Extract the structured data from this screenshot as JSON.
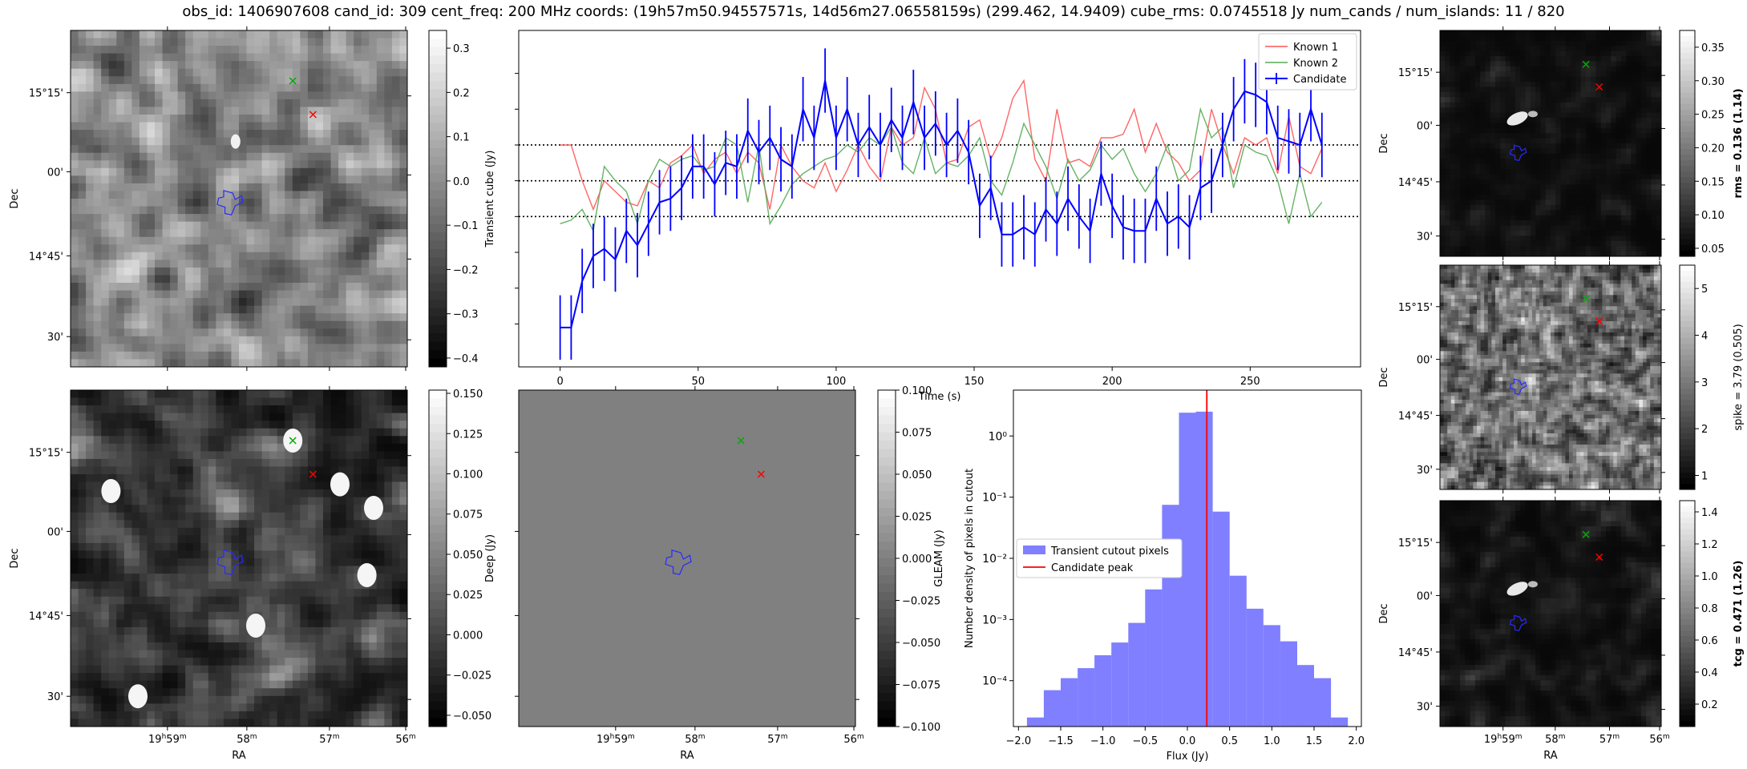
{
  "header": {
    "title": "obs_id: 1406907608 cand_id: 309 cent_freq: 200 MHz coords: (19h57m50.94557571s, 14d56m27.06558159s) (299.462, 14.9409) cube_rms: 0.0745518 Jy num_cands / num_islands: 11 / 820"
  },
  "colors": {
    "candidate": "#0000ff",
    "known1": "#ff5555",
    "known2": "#55aa55",
    "histogram": "#7f7fff",
    "peak_line": "#ff0000",
    "marker_known1": "#00aa00",
    "marker_known2": "#ff0000",
    "contour": "#2a2aff"
  },
  "sky_axes": {
    "ra_ticks": [
      "19h59m",
      "58m",
      "57m",
      "56m"
    ],
    "dec_ticks": [
      "15°15'",
      "00'",
      "14°45'",
      "30'"
    ],
    "xlabel": "RA",
    "ylabel": "Dec"
  },
  "panels": {
    "transient_cube": {
      "colorbar_label": "Transient cube (Jy)",
      "colorbar_ticks": [
        "0.3",
        "0.2",
        "0.1",
        "0.0",
        "−0.1",
        "−0.2",
        "−0.3",
        "−0.4"
      ],
      "colorbar_range": [
        -0.42,
        0.34
      ],
      "texture": "noise"
    },
    "deep": {
      "colorbar_label": "Deep (Jy)",
      "colorbar_ticks": [
        "0.150",
        "0.125",
        "0.100",
        "0.075",
        "0.050",
        "0.025",
        "0.000",
        "−0.025",
        "−0.050"
      ],
      "colorbar_range": [
        -0.057,
        0.152
      ],
      "texture": "sources"
    },
    "gleam": {
      "colorbar_label": "GLEAM (Jy)",
      "colorbar_ticks": [
        "0.100",
        "0.075",
        "0.050",
        "0.025",
        "0.000",
        "−0.025",
        "−0.050",
        "−0.075",
        "−0.100"
      ],
      "colorbar_range": [
        -0.1,
        0.1
      ],
      "texture": "flat"
    },
    "rms": {
      "colorbar_label_plain": "rms = ",
      "colorbar_label_value": "0.136 (1.14)",
      "colorbar_ticks": [
        "0.35",
        "0.30",
        "0.25",
        "0.20",
        "0.15",
        "0.10",
        "0.05"
      ],
      "colorbar_range": [
        0.038,
        0.375
      ],
      "texture": "dark_source"
    },
    "spike": {
      "colorbar_label": "spike = 3.79 (0.505)",
      "colorbar_ticks": [
        "5",
        "4",
        "3",
        "2",
        "1"
      ],
      "colorbar_range": [
        0.7,
        5.5
      ],
      "texture": "speckle"
    },
    "tcg": {
      "colorbar_label_plain": "tcg = ",
      "colorbar_label_value": "0.471 (1.26)",
      "colorbar_ticks": [
        "1.4",
        "1.2",
        "1.0",
        "0.8",
        "0.6",
        "0.4",
        "0.2"
      ],
      "colorbar_range": [
        0.06,
        1.47
      ],
      "texture": "dark_source"
    }
  },
  "chart_data": [
    {
      "type": "line",
      "title": "",
      "xlabel": "Time (s)",
      "ylabel": "",
      "xlim": [
        -15,
        290
      ],
      "ylim": [
        -0.52,
        0.42
      ],
      "x_ticks": [
        "0",
        "50",
        "100",
        "150",
        "200",
        "250"
      ],
      "hlines": [
        -0.1,
        0.0,
        0.1
      ],
      "legend": [
        "Known 1",
        "Known 2",
        "Candidate"
      ],
      "legend_position": "top-right",
      "x": [
        0,
        4,
        8,
        12,
        16,
        20,
        24,
        28,
        32,
        36,
        40,
        44,
        48,
        52,
        56,
        60,
        64,
        68,
        72,
        76,
        80,
        84,
        88,
        92,
        96,
        100,
        104,
        108,
        112,
        116,
        120,
        124,
        128,
        132,
        136,
        140,
        144,
        148,
        152,
        156,
        160,
        164,
        168,
        172,
        176,
        180,
        184,
        188,
        192,
        196,
        200,
        204,
        208,
        212,
        216,
        220,
        224,
        228,
        232,
        236,
        240,
        244,
        248,
        252,
        256,
        260,
        264,
        268,
        272,
        276
      ],
      "series": [
        {
          "name": "Known 1",
          "values": [
            0.1,
            0.1,
            0.0,
            -0.08,
            0.0,
            -0.03,
            -0.06,
            -0.07,
            0.0,
            -0.02,
            0.05,
            0.07,
            0.1,
            0.02,
            0.06,
            0.08,
            0.02,
            0.08,
            0.05,
            -0.08,
            0.1,
            0.04,
            0.0,
            -0.02,
            0.05,
            -0.03,
            0.03,
            0.1,
            0.04,
            0.0,
            0.15,
            0.1,
            0.12,
            0.26,
            0.2,
            0.05,
            0.06,
            0.15,
            0.17,
            0.06,
            0.12,
            0.23,
            0.28,
            0.06,
            0.0,
            0.2,
            0.05,
            0.06,
            0.04,
            0.12,
            0.12,
            0.13,
            0.2,
            0.08,
            0.16,
            0.08,
            0.05,
            0.0,
            0.03,
            0.2,
            0.1,
            0.02,
            0.12,
            0.1,
            0.12,
            0.02,
            0.18,
            0.04,
            0.02,
            0.09
          ]
        },
        {
          "name": "Known 2",
          "values": [
            -0.12,
            -0.11,
            -0.08,
            -0.14,
            0.04,
            0.0,
            -0.03,
            -0.12,
            0.0,
            0.06,
            0.04,
            0.06,
            0.07,
            0.03,
            0.04,
            0.12,
            0.1,
            -0.06,
            0.1,
            -0.12,
            -0.07,
            -0.01,
            0.02,
            0.04,
            0.06,
            0.07,
            0.1,
            0.08,
            0.12,
            0.1,
            0.15,
            0.05,
            0.02,
            0.12,
            0.02,
            0.05,
            0.04,
            0.07,
            0.12,
            0.0,
            -0.04,
            0.05,
            0.16,
            0.1,
            0.04,
            -0.05,
            0.06,
            0.0,
            0.03,
            0.1,
            0.06,
            0.09,
            0.02,
            -0.03,
            0.02,
            0.1,
            0.0,
            0.03,
            0.2,
            0.12,
            0.15,
            -0.02,
            0.1,
            0.08,
            0.07,
            0.0,
            -0.12,
            0.02,
            -0.1,
            -0.06
          ]
        },
        {
          "name": "Candidate",
          "values": [
            -0.41,
            -0.41,
            -0.28,
            -0.21,
            -0.19,
            -0.22,
            -0.14,
            -0.18,
            -0.12,
            -0.06,
            -0.05,
            -0.02,
            0.04,
            0.04,
            -0.01,
            0.05,
            0.04,
            0.14,
            0.08,
            0.12,
            0.06,
            0.04,
            0.2,
            0.12,
            0.28,
            0.12,
            0.2,
            0.1,
            0.15,
            0.1,
            0.17,
            0.12,
            0.22,
            0.12,
            0.16,
            0.1,
            0.14,
            0.08,
            -0.07,
            -0.02,
            -0.15,
            -0.15,
            -0.13,
            -0.15,
            -0.08,
            -0.12,
            -0.05,
            -0.1,
            -0.14,
            0.02,
            -0.07,
            -0.13,
            -0.14,
            -0.14,
            -0.05,
            -0.12,
            -0.1,
            -0.13,
            -0.02,
            0.0,
            0.1,
            0.2,
            0.25,
            0.24,
            0.22,
            0.12,
            0.11,
            0.1,
            0.2,
            0.1
          ]
        }
      ],
      "error_bar": 0.09
    },
    {
      "type": "bar",
      "title": "",
      "xlabel": "Flux (Jy)",
      "ylabel": "Number density of pixels in cutout",
      "xlim": [
        -2.06,
        2.06
      ],
      "ylim_log10": [
        -4.75,
        0.75
      ],
      "yscale": "log",
      "x_ticks": [
        "−2.0",
        "−1.5",
        "−1.0",
        "−0.5",
        "0.0",
        "0.5",
        "1.0",
        "1.5",
        "2.0"
      ],
      "y_ticks": [
        "10⁰",
        "10⁻¹",
        "10⁻²",
        "10⁻³",
        "10⁻⁴"
      ],
      "bin_edges": [
        -1.9,
        -1.7,
        -1.5,
        -1.3,
        -1.1,
        -0.9,
        -0.7,
        -0.5,
        -0.3,
        -0.1,
        0.1,
        0.3,
        0.5,
        0.7,
        0.9,
        1.1,
        1.3,
        1.5,
        1.7,
        1.9
      ],
      "values": [
        2.5e-05,
        7e-05,
        0.00011,
        0.00016,
        0.00026,
        0.00042,
        0.00088,
        0.0031,
        0.075,
        2.4,
        2.5,
        0.058,
        0.0052,
        0.0015,
        0.00081,
        0.00044,
        0.00018,
        0.00011,
        2.5e-05
      ],
      "candidate_peak": 0.23,
      "legend": [
        "Transient cutout pixels",
        "Candidate peak"
      ],
      "legend_position": "center-left"
    }
  ]
}
